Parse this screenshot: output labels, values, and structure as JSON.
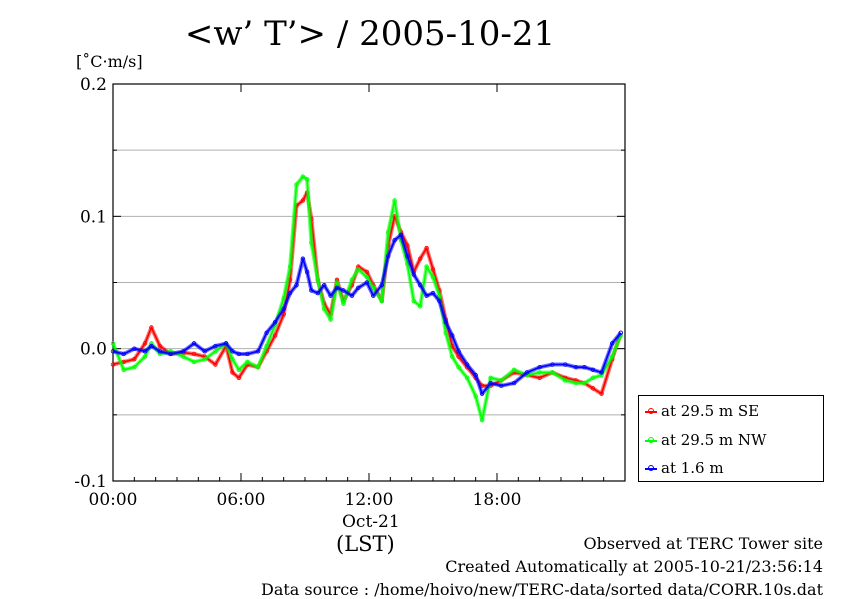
{
  "chart_data": {
    "type": "line",
    "title": "<w’ T’> / 2005-10-21",
    "ylabel": "[˚C·m/s]",
    "xlabel": "(LST)",
    "x_date_label": "Oct-21",
    "x_tick_labels": [
      "00:00",
      "06:00",
      "12:00",
      "18:00"
    ],
    "y_tick_labels": [
      "-0.1",
      "0.0",
      "0.1",
      "0.2"
    ],
    "xlim": [
      0,
      24
    ],
    "ylim": [
      -0.1,
      0.2
    ],
    "y_gridlines": [
      -0.05,
      0.0,
      0.05,
      0.1,
      0.15
    ],
    "grid": "horizontal",
    "legend_position": "bottom-right-outside",
    "series": [
      {
        "name": "at 29.5 m SE",
        "color": "#ff0000",
        "x": [
          0,
          0.5,
          1.0,
          1.5,
          1.8,
          2.2,
          2.7,
          3.3,
          3.8,
          4.3,
          4.8,
          5.3,
          5.6,
          5.9,
          6.3,
          6.8,
          7.2,
          7.6,
          8.0,
          8.3,
          8.6,
          8.9,
          9.1,
          9.3,
          9.6,
          9.9,
          10.2,
          10.5,
          10.8,
          11.2,
          11.5,
          11.9,
          12.2,
          12.6,
          12.9,
          13.2,
          13.5,
          13.8,
          14.1,
          14.4,
          14.7,
          15.0,
          15.3,
          15.6,
          15.9,
          16.2,
          16.6,
          17.0,
          17.3,
          17.7,
          18.2,
          18.8,
          19.4,
          20.0,
          20.6,
          21.2,
          21.7,
          22.1,
          22.5,
          22.9,
          23.4,
          23.8
        ],
        "y": [
          -0.012,
          -0.01,
          -0.008,
          0.004,
          0.016,
          0.002,
          -0.004,
          -0.003,
          -0.004,
          -0.006,
          -0.012,
          0.002,
          -0.018,
          -0.022,
          -0.012,
          -0.014,
          -0.002,
          0.01,
          0.026,
          0.052,
          0.108,
          0.112,
          0.118,
          0.098,
          0.052,
          0.034,
          0.026,
          0.052,
          0.036,
          0.048,
          0.062,
          0.058,
          0.048,
          0.036,
          0.078,
          0.1,
          0.088,
          0.078,
          0.058,
          0.068,
          0.076,
          0.06,
          0.044,
          0.022,
          0.002,
          -0.006,
          -0.014,
          -0.022,
          -0.028,
          -0.028,
          -0.024,
          -0.018,
          -0.02,
          -0.022,
          -0.018,
          -0.022,
          -0.024,
          -0.026,
          -0.03,
          -0.034,
          -0.008,
          0.012
        ]
      },
      {
        "name": "at 29.5 m NW",
        "color": "#00ff00",
        "x": [
          0,
          0.5,
          1.0,
          1.5,
          1.8,
          2.2,
          2.7,
          3.3,
          3.8,
          4.3,
          4.8,
          5.3,
          5.6,
          5.9,
          6.3,
          6.8,
          7.2,
          7.6,
          8.0,
          8.3,
          8.6,
          8.9,
          9.1,
          9.3,
          9.6,
          9.9,
          10.2,
          10.5,
          10.8,
          11.2,
          11.5,
          11.9,
          12.2,
          12.6,
          12.9,
          13.2,
          13.5,
          13.8,
          14.1,
          14.4,
          14.7,
          15.0,
          15.3,
          15.6,
          15.9,
          16.2,
          16.6,
          17.0,
          17.3,
          17.7,
          18.2,
          18.8,
          19.4,
          20.0,
          20.6,
          21.2,
          21.7,
          22.1,
          22.5,
          22.9,
          23.4,
          23.8
        ],
        "y": [
          0.004,
          -0.016,
          -0.014,
          -0.006,
          0.004,
          -0.004,
          -0.002,
          -0.006,
          -0.01,
          -0.008,
          -0.002,
          0.004,
          -0.008,
          -0.016,
          -0.01,
          -0.014,
          0.002,
          0.018,
          0.038,
          0.062,
          0.124,
          0.13,
          0.128,
          0.08,
          0.052,
          0.03,
          0.022,
          0.05,
          0.034,
          0.052,
          0.06,
          0.054,
          0.046,
          0.036,
          0.088,
          0.112,
          0.082,
          0.064,
          0.036,
          0.032,
          0.062,
          0.054,
          0.04,
          0.012,
          -0.006,
          -0.014,
          -0.022,
          -0.036,
          -0.054,
          -0.022,
          -0.024,
          -0.016,
          -0.02,
          -0.018,
          -0.018,
          -0.024,
          -0.026,
          -0.026,
          -0.022,
          -0.02,
          -0.006,
          0.01
        ]
      },
      {
        "name": "at 1.6 m",
        "color": "#0000ff",
        "x": [
          0,
          0.5,
          1.0,
          1.5,
          1.8,
          2.2,
          2.7,
          3.3,
          3.8,
          4.3,
          4.8,
          5.3,
          5.6,
          5.9,
          6.3,
          6.8,
          7.2,
          7.6,
          8.0,
          8.3,
          8.6,
          8.9,
          9.1,
          9.3,
          9.6,
          9.9,
          10.2,
          10.5,
          10.8,
          11.2,
          11.5,
          11.9,
          12.2,
          12.6,
          12.9,
          13.2,
          13.5,
          13.8,
          14.1,
          14.4,
          14.7,
          15.0,
          15.3,
          15.6,
          15.9,
          16.2,
          16.6,
          17.0,
          17.3,
          17.7,
          18.2,
          18.8,
          19.4,
          20.0,
          20.6,
          21.2,
          21.7,
          22.1,
          22.5,
          22.9,
          23.4,
          23.8
        ],
        "y": [
          -0.002,
          -0.004,
          0.0,
          -0.002,
          0.002,
          -0.002,
          -0.004,
          -0.002,
          0.004,
          -0.002,
          0.002,
          0.004,
          -0.002,
          -0.004,
          -0.004,
          -0.002,
          0.012,
          0.02,
          0.03,
          0.042,
          0.048,
          0.068,
          0.058,
          0.044,
          0.042,
          0.048,
          0.04,
          0.046,
          0.044,
          0.04,
          0.046,
          0.05,
          0.04,
          0.048,
          0.07,
          0.082,
          0.086,
          0.07,
          0.056,
          0.048,
          0.04,
          0.042,
          0.036,
          0.02,
          0.01,
          -0.002,
          -0.012,
          -0.02,
          -0.034,
          -0.026,
          -0.028,
          -0.026,
          -0.018,
          -0.014,
          -0.012,
          -0.012,
          -0.014,
          -0.014,
          -0.016,
          -0.018,
          0.004,
          0.012
        ]
      }
    ]
  },
  "footer": {
    "line1": "Observed at TERC Tower site",
    "line2": "Created Automatically at 2005-10-21/23:56:14",
    "line3": "Data source : /home/hoivo/new/TERC-data/sorted  data/CORR.10s.dat"
  }
}
